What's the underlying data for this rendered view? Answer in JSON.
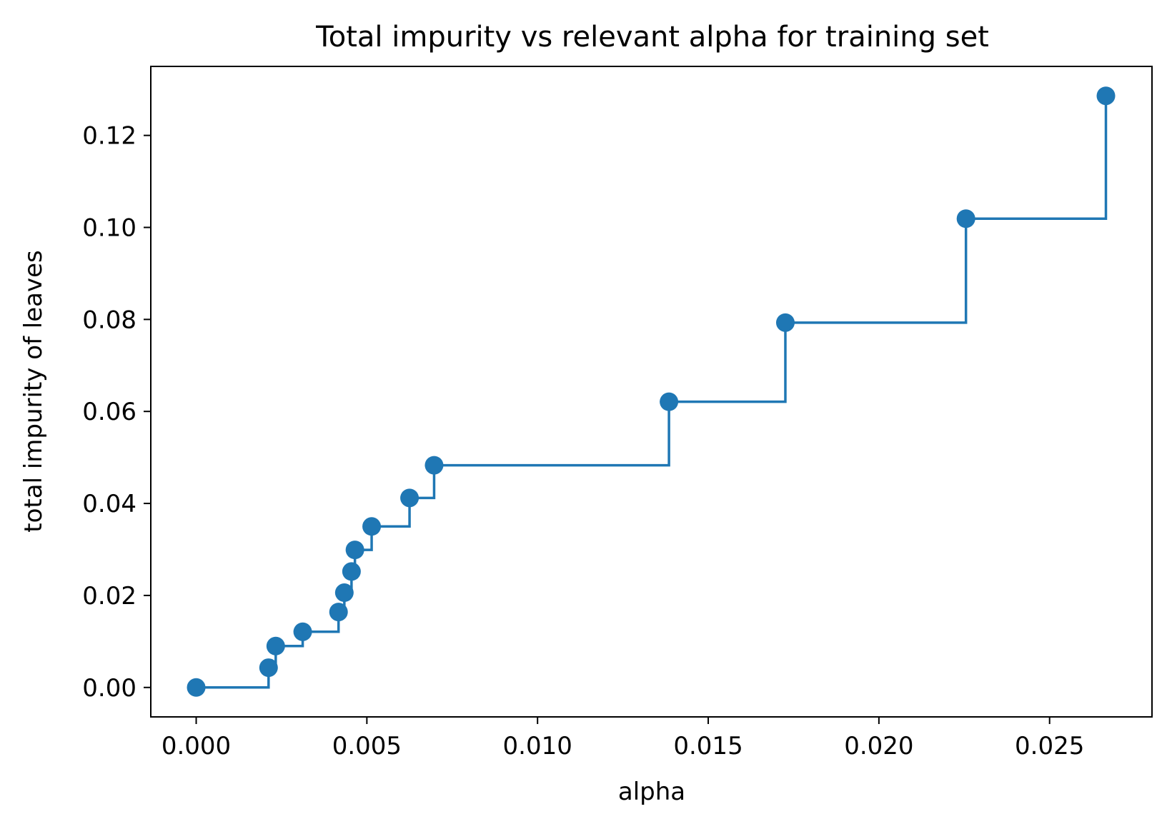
{
  "chart_data": {
    "type": "line",
    "drawstyle": "steps-post",
    "marker": "circle",
    "title": "Total impurity vs relevant alpha for training set",
    "xlabel": "alpha",
    "ylabel": "total impurity of leaves",
    "xlim": [
      -0.00133,
      0.028
    ],
    "ylim": [
      -0.0064,
      0.135
    ],
    "xticks": [
      0.0,
      0.005,
      0.01,
      0.015,
      0.02,
      0.025
    ],
    "xtick_labels": [
      "0.000",
      "0.005",
      "0.010",
      "0.015",
      "0.020",
      "0.025"
    ],
    "yticks": [
      0.0,
      0.02,
      0.04,
      0.06,
      0.08,
      0.1,
      0.12
    ],
    "ytick_labels": [
      "0.00",
      "0.02",
      "0.04",
      "0.06",
      "0.08",
      "0.10",
      "0.12"
    ],
    "grid": false,
    "series": [
      {
        "color": "#1f77b4",
        "x": [
          0.0,
          0.00212,
          0.00233,
          0.00312,
          0.00417,
          0.00434,
          0.00455,
          0.00465,
          0.00514,
          0.00625,
          0.00697,
          0.01385,
          0.01726,
          0.02255,
          0.02665
        ],
        "y": [
          0.0,
          0.0043,
          0.009,
          0.0121,
          0.0164,
          0.0206,
          0.0252,
          0.0299,
          0.035,
          0.0412,
          0.0483,
          0.0621,
          0.0793,
          0.1019,
          0.1286
        ]
      }
    ]
  }
}
